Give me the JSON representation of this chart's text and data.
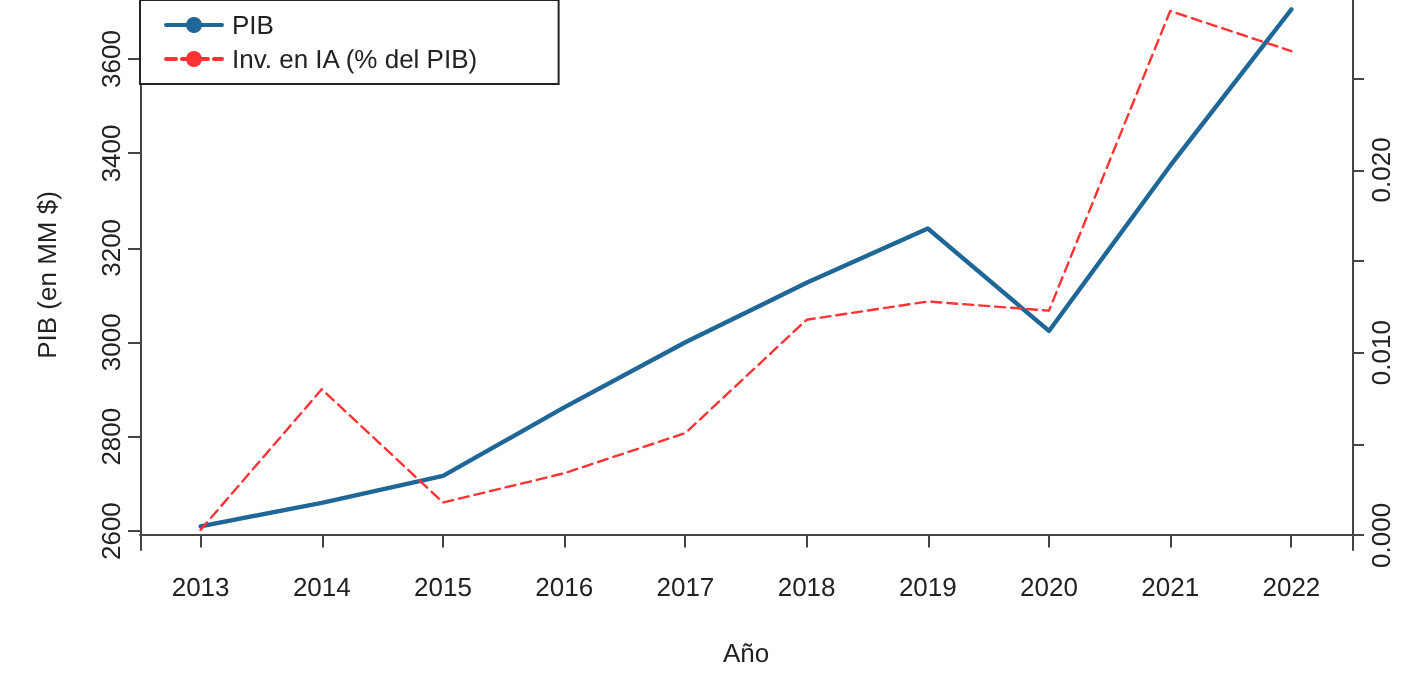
{
  "chart_data": {
    "type": "line",
    "xlabel": "Año",
    "ylabel": "PIB (en MM $)",
    "categories": [
      "2013",
      "2014",
      "2015",
      "2016",
      "2017",
      "2018",
      "2019",
      "2020",
      "2021",
      "2022"
    ],
    "series": [
      {
        "name": "PIB",
        "color": "#1f6797",
        "line_style": "solid",
        "values": [
          2610,
          2660,
          2717,
          2862,
          3000,
          3126,
          3241,
          3024,
          3374,
          3705
        ]
      },
      {
        "name": "Inv. en IA (% del PIB)",
        "color": "#ff3333",
        "line_style": "dashed",
        "axis": "y2",
        "values": [
          0.0003,
          0.008,
          0.0018,
          0.0034,
          0.0056,
          0.0118,
          0.0128,
          0.0123,
          0.0287,
          0.0265
        ]
      }
    ],
    "ylim": [
      2560,
      3725
    ],
    "yticks": [
      2600,
      2800,
      3000,
      3200,
      3400,
      3600
    ],
    "y2lim": [
      -0.0008,
      0.0293
    ],
    "y2ticks": [
      {
        "value": 0,
        "label": "0.000"
      },
      {
        "value": 0.005,
        "label": null
      },
      {
        "value": 0.01,
        "label": "0.010"
      },
      {
        "value": 0.015,
        "label": null
      },
      {
        "value": 0.02,
        "label": "0.020"
      },
      {
        "value": 0.025,
        "label": null
      }
    ],
    "grid": false,
    "legend": "top left",
    "marker": "none"
  }
}
